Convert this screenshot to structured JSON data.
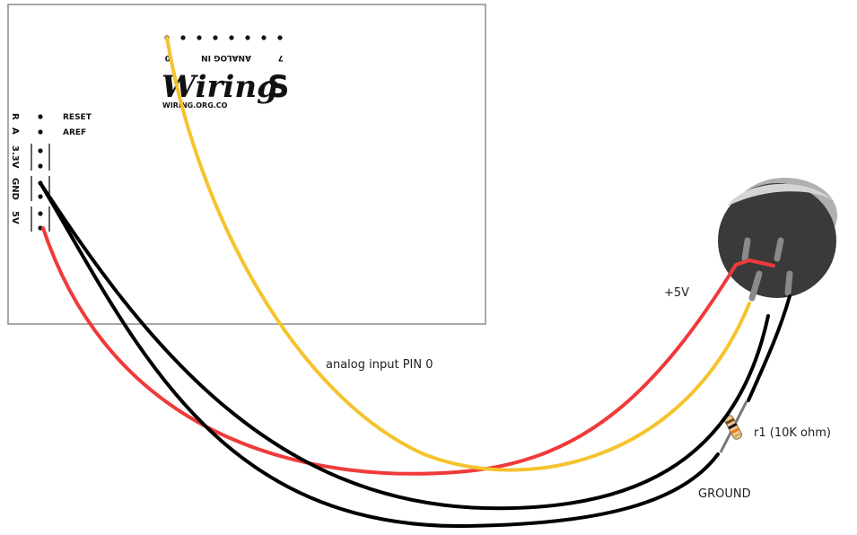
{
  "board": {
    "logo_main": "Wiring",
    "logo_suffix": "S",
    "website": "WIRING.ORG.CO",
    "analog_header_label": "ANALOG IN",
    "analog_pin_first": "0",
    "analog_pin_last": "7",
    "power_pins": [
      "R",
      "A",
      "3.3V",
      "GND",
      "5V"
    ],
    "power_pin_names": [
      "RESET",
      "AREF"
    ]
  },
  "labels": {
    "plus5v": "+5V",
    "analog_input": "analog input PIN 0",
    "resistor": "r1 (10K ohm)",
    "ground": "GROUND"
  },
  "colors": {
    "wire_red": "#f03a3a",
    "wire_yellow": "#f5c32c",
    "wire_black": "#000000",
    "board_border": "#8a8a8a",
    "sensor_body": "#3a3a3a",
    "sensor_rim": "#b0b0b0"
  }
}
